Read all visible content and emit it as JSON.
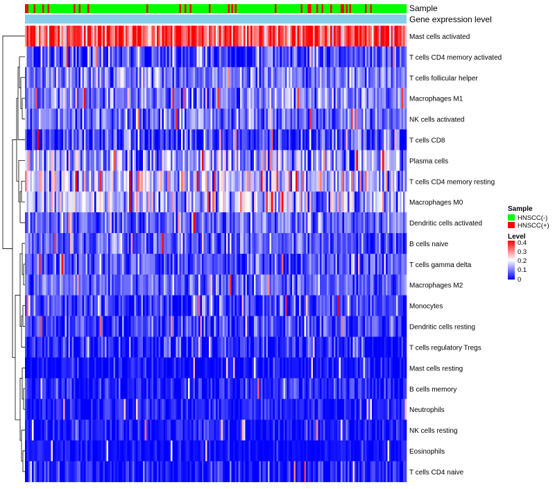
{
  "chart_data": {
    "type": "heatmap",
    "title": "",
    "annotation_tracks": [
      "Sample",
      "Gene expression level"
    ],
    "rows": [
      "Mast cells activated",
      "T cells CD4 memory activated",
      "T cells follicular helper",
      "Macrophages M1",
      "NK cells activated",
      "T cells CD8",
      "Plasma cells",
      "T cells CD4 memory resting",
      "Macrophages M0",
      "Dendritic cells activated",
      "B cells naive",
      "T cells gamma delta",
      "Macrophages M2",
      "Monocytes",
      "Dendritic cells resting",
      "T cells regulatory  Tregs",
      "Mast cells resting",
      "B cells memory",
      "Neutrophils",
      "NK cells resting",
      "Eosinophils",
      "T cells CD4 naive"
    ],
    "row_mean_level": [
      0.34,
      0.05,
      0.1,
      0.1,
      0.09,
      0.05,
      0.13,
      0.15,
      0.15,
      0.08,
      0.07,
      0.06,
      0.08,
      0.05,
      0.05,
      0.03,
      0.01,
      0.02,
      0.02,
      0.02,
      0.01,
      0.02
    ],
    "row_spread": [
      0.08,
      0.06,
      0.05,
      0.05,
      0.05,
      0.07,
      0.08,
      0.08,
      0.08,
      0.05,
      0.05,
      0.05,
      0.05,
      0.05,
      0.05,
      0.05,
      0.03,
      0.04,
      0.03,
      0.03,
      0.02,
      0.04
    ],
    "n_samples": 500,
    "sample_positive_fraction": 0.13,
    "color_scale": {
      "min": 0,
      "max": 0.4,
      "low": "#0000ff",
      "mid": "#ffffff",
      "high": "#ff0000"
    }
  },
  "legend": {
    "sample": {
      "title": "Sample",
      "items": [
        {
          "label": "HNSCC(-)",
          "color": "#00ff00"
        },
        {
          "label": "HNSCC(+)",
          "color": "#ff0000"
        }
      ]
    },
    "level": {
      "title": "Level",
      "ticks": [
        "0.4",
        "0.3",
        "0.2",
        "0.1",
        "0"
      ]
    }
  },
  "colors": {
    "gene_track": "#87ceeb",
    "dendrogram": "#000000"
  }
}
